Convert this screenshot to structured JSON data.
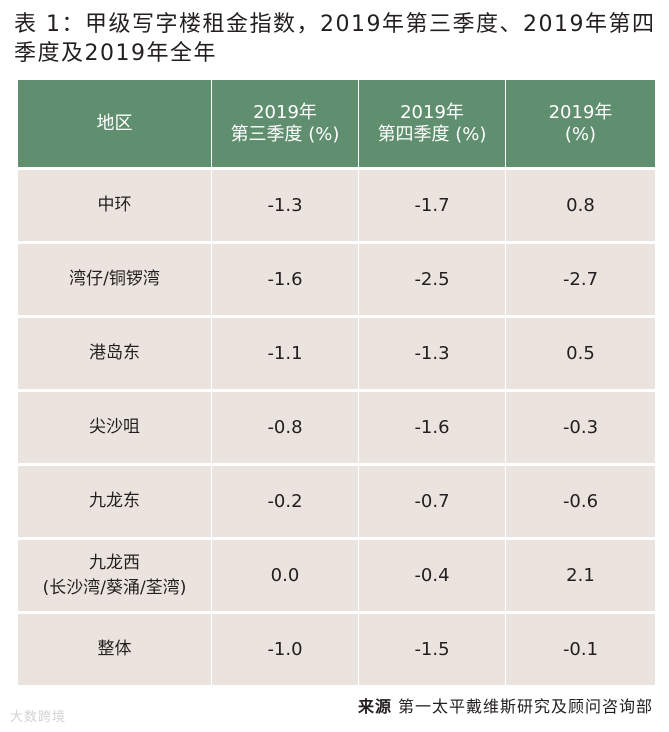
{
  "title": "表 1：甲级写字楼租金指数，2019年第三季度、2019年第四季度及2019年全年",
  "table": {
    "headers": [
      [
        "地区"
      ],
      [
        "2019年",
        "第三季度 (%)"
      ],
      [
        "2019年",
        "第四季度 (%)"
      ],
      [
        "2019年",
        "(%)"
      ]
    ],
    "rows": [
      {
        "region": [
          "中环"
        ],
        "q3": "-1.3",
        "q4": "-1.7",
        "year": "0.8"
      },
      {
        "region": [
          "湾仔/铜锣湾"
        ],
        "q3": "-1.6",
        "q4": "-2.5",
        "year": "-2.7"
      },
      {
        "region": [
          "港岛东"
        ],
        "q3": "-1.1",
        "q4": "-1.3",
        "year": "0.5"
      },
      {
        "region": [
          "尖沙咀"
        ],
        "q3": "-0.8",
        "q4": "-1.6",
        "year": "-0.3"
      },
      {
        "region": [
          "九龙东"
        ],
        "q3": "-0.2",
        "q4": "-0.7",
        "year": "-0.6"
      },
      {
        "region": [
          "九龙西",
          "(长沙湾/葵涌/荃湾)"
        ],
        "q3": "0.0",
        "q4": "-0.4",
        "year": "2.1"
      },
      {
        "region": [
          "整体"
        ],
        "q3": "-1.0",
        "q4": "-1.5",
        "year": "-0.1"
      }
    ]
  },
  "source": {
    "label": "来源",
    "text": "第一太平戴维斯研究及顾问咨询部"
  },
  "watermark": "大数跨境",
  "colors": {
    "header_bg": "#5f8f6e",
    "cell_bg": "#ebe3dd",
    "text": "#231f20"
  }
}
